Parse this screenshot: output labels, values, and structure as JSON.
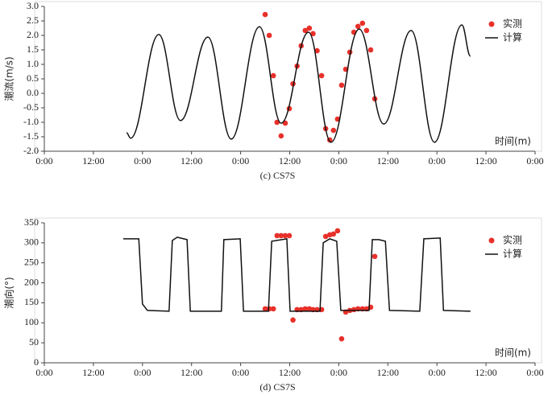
{
  "chart_data": [
    {
      "type": "line",
      "smooth": true,
      "caption": "(c) CS7S",
      "ylabel": "潮流(m/s)",
      "xlabel": "时间(m)",
      "legend": "upper right",
      "xlim": [
        0,
        120
      ],
      "xticks": [
        {
          "value": 0,
          "label": "0:00"
        },
        {
          "value": 12,
          "label": "12:00"
        },
        {
          "value": 24,
          "label": "0:00"
        },
        {
          "value": 36,
          "label": "12:00"
        },
        {
          "value": 48,
          "label": "0:00"
        },
        {
          "value": 60,
          "label": "12:00"
        },
        {
          "value": 72,
          "label": "0:00"
        },
        {
          "value": 84,
          "label": "12:00"
        },
        {
          "value": 96,
          "label": "0:00"
        },
        {
          "value": 108,
          "label": "12:00"
        },
        {
          "value": 120,
          "label": "0:00"
        }
      ],
      "ylim": [
        -2,
        3
      ],
      "yticks": [
        {
          "value": -2,
          "label": "-2.0"
        },
        -1.5,
        {
          "value": -1,
          "label": "-1.0"
        },
        -0.5,
        {
          "value": 0,
          "label": "0.0"
        },
        0.5,
        {
          "value": 1,
          "label": "1.0"
        },
        1.5,
        {
          "value": 2,
          "label": "2.0"
        },
        2.5,
        {
          "value": 3,
          "label": "3.0"
        }
      ],
      "series": [
        {
          "name": "实测",
          "type": "scatter",
          "color": "#e8302a",
          "x": [
            54.0,
            55.0,
            56.0,
            56.9,
            57.9,
            58.9,
            59.9,
            60.8,
            61.8,
            62.8,
            63.8,
            64.8,
            65.7,
            66.7,
            67.8,
            68.8,
            69.8,
            70.7,
            71.7,
            72.7,
            73.7,
            74.7,
            75.7,
            76.7,
            77.8,
            78.8,
            79.8,
            80.8
          ],
          "values": [
            2.72,
            2.0,
            0.61,
            -1.0,
            -1.47,
            -1.03,
            -0.53,
            0.33,
            0.94,
            1.64,
            2.17,
            2.25,
            2.06,
            1.47,
            0.61,
            -1.22,
            -1.61,
            -1.28,
            -0.89,
            0.28,
            0.83,
            1.42,
            2.11,
            2.31,
            2.42,
            2.17,
            1.5,
            -0.19
          ]
        },
        {
          "name": "计算",
          "type": "line",
          "color": "#111111",
          "x": [
            20.1,
            21.1,
            28.0,
            33.3,
            40.0,
            45.7,
            52.6,
            57.9,
            64.6,
            70.1,
            77.0,
            83.0,
            89.7,
            95.4,
            102.1,
            104.2
          ],
          "values": [
            -1.36,
            -1.55,
            2.03,
            -0.94,
            1.94,
            -1.58,
            2.3,
            -1.03,
            2.11,
            -1.69,
            2.22,
            -1.06,
            2.17,
            -1.69,
            2.36,
            1.28
          ]
        }
      ]
    },
    {
      "type": "line",
      "smooth": false,
      "caption": "(d) CS7S",
      "ylabel": "潮向(°)",
      "xlabel": "时间(m)",
      "legend": "upper right",
      "xlim": [
        0,
        120
      ],
      "xticks": [
        {
          "value": 0,
          "label": "0:00"
        },
        {
          "value": 12,
          "label": "12:00"
        },
        {
          "value": 24,
          "label": "0:00"
        },
        {
          "value": 36,
          "label": "12:00"
        },
        {
          "value": 48,
          "label": "0:00"
        },
        {
          "value": 60,
          "label": "12:00"
        },
        {
          "value": 72,
          "label": "0:00"
        },
        {
          "value": 84,
          "label": "12:00"
        },
        {
          "value": 96,
          "label": "0:00"
        },
        {
          "value": 108,
          "label": "12:00"
        },
        {
          "value": 120,
          "label": "0:00"
        }
      ],
      "ylim": [
        0,
        350
      ],
      "yticks": [
        0,
        50,
        100,
        150,
        200,
        250,
        300,
        350
      ],
      "series": [
        {
          "name": "实测",
          "type": "scatter",
          "color": "#e8302a",
          "x": [
            54.0,
            55.0,
            56.0,
            56.9,
            57.9,
            58.9,
            59.9,
            60.8,
            61.8,
            62.8,
            63.8,
            64.8,
            65.7,
            66.7,
            67.8,
            68.8,
            69.8,
            70.7,
            71.7,
            72.7,
            73.7,
            74.7,
            75.7,
            76.7,
            77.8,
            78.8,
            79.8,
            80.8
          ],
          "values": [
            135,
            135,
            135,
            318,
            318,
            318,
            318,
            107,
            133,
            133,
            135,
            135,
            133,
            133,
            133,
            316,
            320,
            322,
            330,
            60,
            127,
            131,
            133,
            135,
            135,
            135,
            139,
            266
          ]
        },
        {
          "name": "计算",
          "type": "line",
          "color": "#111111",
          "x": [
            19.3,
            23.1,
            24.0,
            25.2,
            30.5,
            31.3,
            32.5,
            34.1,
            34.9,
            35.7,
            43.3,
            43.9,
            47.9,
            48.7,
            54.8,
            55.6,
            59.3,
            60.1,
            67.4,
            68.2,
            69.8,
            71.5,
            72.5,
            79.4,
            80.2,
            81.8,
            83.4,
            84.4,
            91.8,
            92.8,
            96.8,
            97.6,
            104.2
          ],
          "values": [
            310,
            310,
            147,
            131,
            129,
            306,
            314,
            310,
            308,
            129,
            129,
            308,
            310,
            129,
            129,
            304,
            310,
            129,
            129,
            300,
            310,
            304,
            131,
            131,
            308,
            308,
            304,
            131,
            129,
            310,
            312,
            131,
            129
          ]
        }
      ]
    }
  ]
}
